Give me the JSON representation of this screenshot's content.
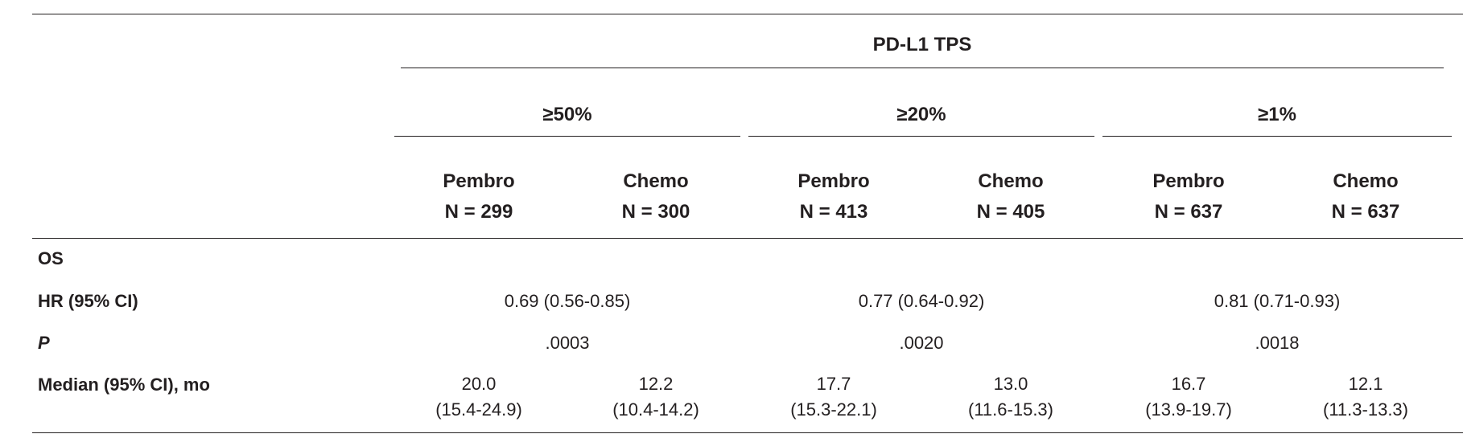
{
  "table": {
    "group_header": "PD-L1 TPS",
    "groups": [
      {
        "label": "≥50%"
      },
      {
        "label": "≥20%"
      },
      {
        "label": "≥1%"
      }
    ],
    "columns": [
      {
        "arm": "Pembro",
        "n": "N = 299"
      },
      {
        "arm": "Chemo",
        "n": "N = 300"
      },
      {
        "arm": "Pembro",
        "n": "N = 413"
      },
      {
        "arm": "Chemo",
        "n": "N = 405"
      },
      {
        "arm": "Pembro",
        "n": "N = 637"
      },
      {
        "arm": "Chemo",
        "n": "N = 637"
      }
    ],
    "section_label": "OS",
    "rows": {
      "hr": {
        "label": "HR (95% CI)",
        "values": [
          "0.69 (0.56-0.85)",
          "0.77 (0.64-0.92)",
          "0.81 (0.71-0.93)"
        ]
      },
      "p": {
        "label": "P",
        "values": [
          ".0003",
          ".0020",
          ".0018"
        ]
      },
      "median": {
        "label": "Median (95% CI), mo",
        "values": [
          {
            "estimate": "20.0",
            "ci": "(15.4-24.9)"
          },
          {
            "estimate": "12.2",
            "ci": "(10.4-14.2)"
          },
          {
            "estimate": "17.7",
            "ci": "(15.3-22.1)"
          },
          {
            "estimate": "13.0",
            "ci": "(11.6-15.3)"
          },
          {
            "estimate": "16.7",
            "ci": "(13.9-19.7)"
          },
          {
            "estimate": "12.1",
            "ci": "(11.3-13.3)"
          }
        ]
      }
    }
  }
}
